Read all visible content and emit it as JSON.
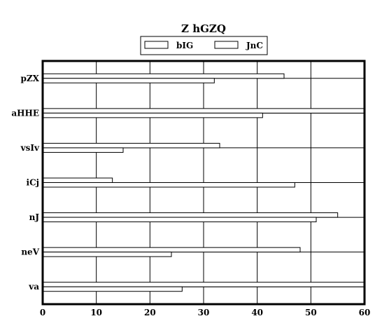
{
  "chart_data": {
    "type": "bar",
    "orientation": "horizontal",
    "title": "Z hGZQ",
    "xlabel": "",
    "ylabel": "",
    "categories": [
      "pZX",
      "aHHE",
      "vsIv",
      "iCj",
      "nJ",
      "neV",
      "va"
    ],
    "series": [
      {
        "name": "bIG",
        "values": [
          45,
          60,
          33,
          13,
          55,
          48,
          60
        ]
      },
      {
        "name": "JnC",
        "values": [
          32,
          41,
          15,
          47,
          51,
          24,
          26
        ]
      }
    ],
    "xlim": [
      0,
      60
    ],
    "xticks": [
      "0",
      "10",
      "20",
      "30",
      "40",
      "50",
      "60"
    ],
    "grid": true,
    "legend_position": "top-center",
    "colors": {
      "bar_fill": "#ffffff",
      "bar_stroke": "#000000",
      "grid": "#000000"
    }
  }
}
